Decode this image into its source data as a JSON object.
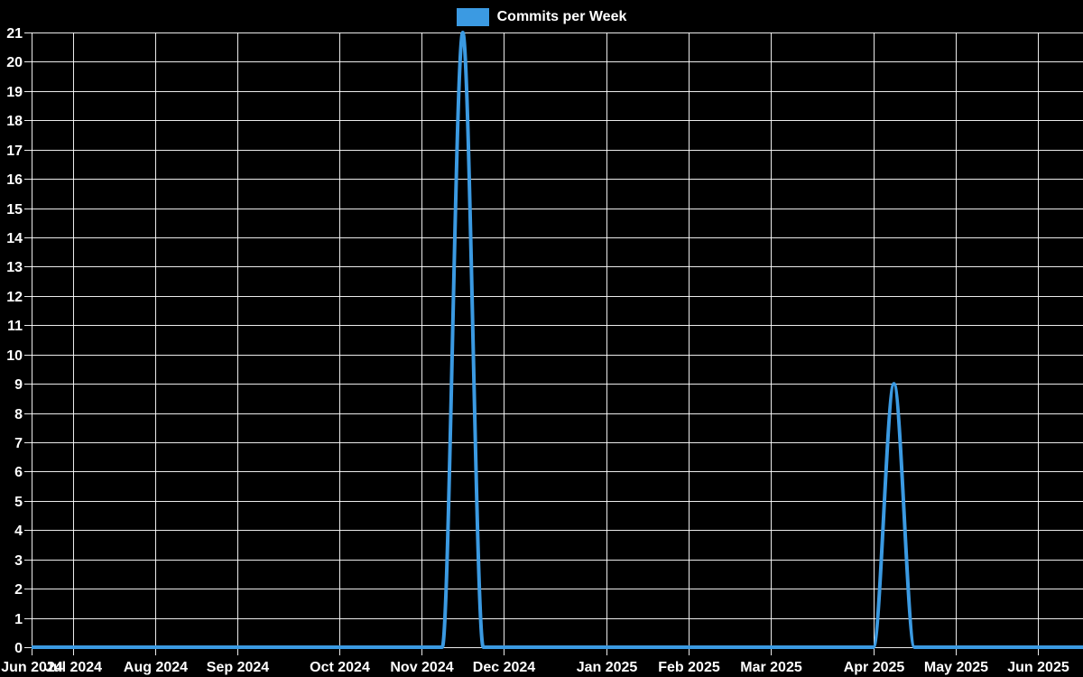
{
  "legend": {
    "label": "Commits per Week",
    "swatch_color": "#3b9ae2"
  },
  "chart_data": {
    "type": "line",
    "title": "Commits per Week",
    "xlabel": "",
    "ylabel": "",
    "legend_position": "top-center",
    "grid": true,
    "background_color": "#000000",
    "gridline_color": "#ffffff",
    "text_color": "#ffffff",
    "ylim": [
      0,
      21
    ],
    "y_ticks": [
      0,
      1,
      2,
      3,
      4,
      5,
      6,
      7,
      8,
      9,
      10,
      11,
      12,
      13,
      14,
      15,
      16,
      17,
      18,
      19,
      20,
      21
    ],
    "x_unit": "week",
    "weeks_total": 53,
    "x_ticks": [
      {
        "label": "Jun 2024",
        "week": 0
      },
      {
        "label": "Jul 2024",
        "week": 2
      },
      {
        "label": "Aug 2024",
        "week": 6
      },
      {
        "label": "Sep 2024",
        "week": 10
      },
      {
        "label": "Oct 2024",
        "week": 15
      },
      {
        "label": "Nov 2024",
        "week": 19
      },
      {
        "label": "Dec 2024",
        "week": 23
      },
      {
        "label": "Jan 2025",
        "week": 28
      },
      {
        "label": "Feb 2025",
        "week": 32
      },
      {
        "label": "Mar 2025",
        "week": 36
      },
      {
        "label": "Apr 2025",
        "week": 41
      },
      {
        "label": "May 2025",
        "week": 45
      },
      {
        "label": "Jun 2025",
        "week": 49
      }
    ],
    "series": [
      {
        "name": "Commits per Week",
        "color": "#3b9ae2",
        "values": [
          0,
          0,
          0,
          0,
          0,
          0,
          0,
          0,
          0,
          0,
          0,
          0,
          0,
          0,
          0,
          0,
          0,
          0,
          0,
          0,
          0,
          21,
          0,
          0,
          0,
          0,
          0,
          0,
          0,
          0,
          0,
          0,
          0,
          0,
          0,
          0,
          0,
          0,
          0,
          0,
          0,
          0,
          9,
          0,
          0,
          0,
          0,
          0,
          0,
          0,
          0,
          0,
          0
        ]
      }
    ],
    "notable_points": [
      {
        "x_label": "mid-Nov 2024",
        "value": 21
      },
      {
        "x_label": "early-Apr 2025",
        "value": 9
      }
    ]
  }
}
